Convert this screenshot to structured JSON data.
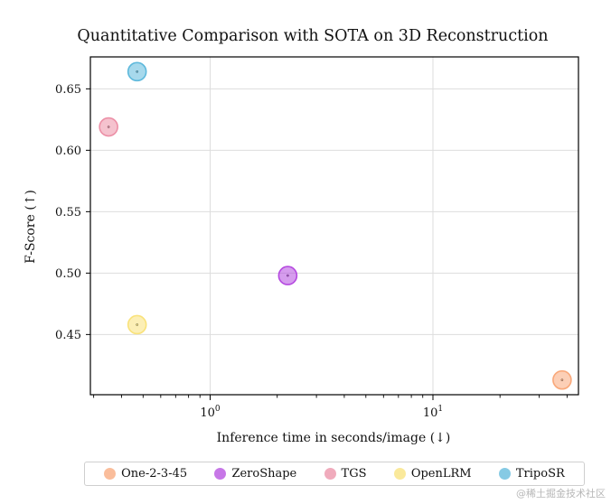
{
  "chart_data": {
    "type": "scatter",
    "title": "Quantitative Comparison with SOTA on 3D Reconstruction",
    "xlabel": "Inference time in seconds/image (↓)",
    "ylabel": "F-Score (↑)",
    "xscale": "log",
    "xlim": [
      0.29,
      45
    ],
    "ylim": [
      0.401,
      0.676
    ],
    "yticks": [
      0.45,
      0.5,
      0.55,
      0.6,
      0.65
    ],
    "ytick_labels": [
      "0.45",
      "0.50",
      "0.55",
      "0.60",
      "0.65"
    ],
    "xticks": [
      {
        "value": 1,
        "base": "10",
        "exp": "0"
      },
      {
        "value": 10,
        "base": "10",
        "exp": "1"
      }
    ],
    "grid": true,
    "legend_position": "bottom",
    "series": [
      {
        "name": "One-2-3-45",
        "x": 38,
        "y": 0.413,
        "color": "#f9a87a"
      },
      {
        "name": "ZeroShape",
        "x": 2.23,
        "y": 0.498,
        "color": "#b54ae0"
      },
      {
        "name": "TGS",
        "x": 0.35,
        "y": 0.619,
        "color": "#ec8fa6"
      },
      {
        "name": "OpenLRM",
        "x": 0.47,
        "y": 0.458,
        "color": "#f9e27a"
      },
      {
        "name": "TripoSR",
        "x": 0.47,
        "y": 0.664,
        "color": "#5eb9dc"
      }
    ]
  },
  "watermark": "@稀土掘金技术社区"
}
